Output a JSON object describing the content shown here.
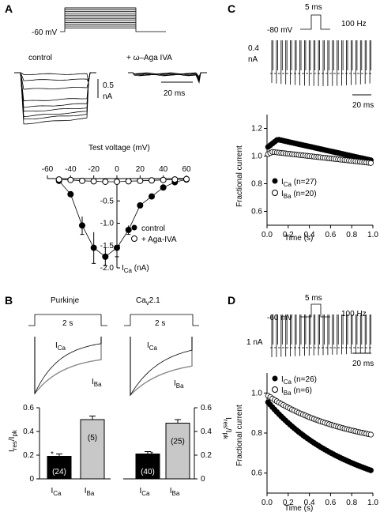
{
  "panels": {
    "A": {
      "label": "A",
      "protocol_holding": "-60 mV",
      "trace_labels": {
        "control": "control",
        "aga": "+ ω–Aga IVA"
      },
      "scale": {
        "current_value": "0.5",
        "current_unit": "nA",
        "time": "20 ms"
      },
      "iv_title": "Test voltage (mV)",
      "iv_ylabel": "I",
      "iv_ylabel_sub": "Ca",
      "iv_yunit": " (nA)",
      "legend": {
        "control": "control",
        "aga": "+ Aga-IVA"
      }
    },
    "B": {
      "label": "B",
      "purkinje": {
        "title": "Purkinje",
        "duration": "2 s",
        "ica": "I",
        "ica_sub": "Ca",
        "iba": "I",
        "iba_sub": "Ba"
      },
      "cav": {
        "title_main": "Ca",
        "title_sub": "v",
        "title_rest": "2.1",
        "duration": "2 s",
        "ica": "I",
        "ica_sub": "Ca",
        "iba": "I",
        "iba_sub": "Ba"
      },
      "ylabel_left": {
        "main": "I",
        "sub1": "res",
        "mid": "/I",
        "sub2": "pk"
      },
      "ylabel_right": {
        "main": "I",
        "sub1": "res",
        "mid": "/I",
        "sub2": "pk"
      },
      "star": "*",
      "xcat": {
        "main": "I",
        "ca_sub": "Ca",
        "ba_sub": "Ba"
      }
    },
    "C": {
      "label": "C",
      "pulse_duration": "5 ms",
      "holding": "-80 mV",
      "frequency": "100 Hz",
      "scale": {
        "current_value": "0.4",
        "current_unit": "nA",
        "time": "20 ms"
      },
      "ylabel": "Fractional current",
      "xlabel": "Time (s)",
      "legend": {
        "ica": "I",
        "ica_sub": "Ca",
        "ica_n": " (n=27)",
        "iba": "I",
        "iba_sub": "Ba",
        "iba_n": " (n=20)"
      }
    },
    "D": {
      "label": "D",
      "pulse_duration": "5 ms",
      "holding": "-60 mV",
      "frequency": "100 Hz",
      "scale": {
        "current_value": "1 nA",
        "time": "20 ms"
      },
      "ylabel": "Fractional current",
      "xlabel": "Time (s)",
      "legend": {
        "ica": "I",
        "ica_sub": "Ca",
        "ica_n": " (n=26)",
        "iba": "I",
        "iba_sub": "Ba",
        "iba_n": " (n=6)"
      }
    }
  },
  "chart_data": [
    {
      "id": "A-iv",
      "type": "line",
      "title": "Test voltage (mV)",
      "xlim": [
        -60,
        60
      ],
      "ylim": [
        -2.0,
        0
      ],
      "xticks": [
        -60,
        -40,
        -20,
        0,
        20,
        40,
        60
      ],
      "yticks": [
        -2.0,
        -1.5,
        -1.0,
        -0.5
      ],
      "series": [
        {
          "name": "control",
          "marker": "filled",
          "x": [
            -50,
            -40,
            -30,
            -20,
            -10,
            0,
            10,
            20,
            30,
            40,
            50,
            60
          ],
          "y": [
            -0.05,
            -0.35,
            -1.05,
            -1.55,
            -1.75,
            -1.55,
            -1.15,
            -0.6,
            -0.4,
            -0.2,
            -0.08,
            -0.02
          ],
          "err": [
            0.02,
            0.05,
            0.2,
            0.35,
            0.2,
            0.2,
            0.1,
            0.05,
            0.05,
            0.03,
            0.02,
            0.01
          ]
        },
        {
          "name": "+ Aga-IVA",
          "marker": "open",
          "x": [
            -50,
            -40,
            -30,
            -20,
            -10,
            0,
            10,
            20,
            30,
            40,
            50,
            60
          ],
          "y": [
            -0.02,
            -0.03,
            -0.05,
            -0.06,
            -0.07,
            -0.07,
            -0.06,
            -0.05,
            -0.04,
            -0.03,
            -0.02,
            -0.01
          ]
        }
      ]
    },
    {
      "id": "B-bar-purkinje",
      "type": "bar",
      "categories": [
        "Ca",
        "Ba"
      ],
      "values": [
        0.19,
        0.5
      ],
      "err": [
        0.02,
        0.03
      ],
      "n": [
        "(24)",
        "(5)"
      ],
      "ylim": [
        0,
        0.6
      ],
      "yticks": [
        0,
        0.2,
        0.4,
        0.6
      ]
    },
    {
      "id": "B-bar-cav21",
      "type": "bar",
      "categories": [
        "Ca",
        "Ba"
      ],
      "values": [
        0.21,
        0.47
      ],
      "err": [
        0.02,
        0.03
      ],
      "n": [
        "(40)",
        "(25)"
      ],
      "ylim": [
        0,
        0.6
      ],
      "yticks": [
        0,
        0.2,
        0.4,
        0.6
      ]
    },
    {
      "id": "C-fractional",
      "type": "scatter",
      "xlabel": "Time (s)",
      "ylabel": "Fractional current",
      "xlim": [
        0,
        1.0
      ],
      "ylim": [
        0.5,
        1.3
      ],
      "xticks": [
        0.0,
        0.2,
        0.4,
        0.6,
        0.8,
        1.0
      ],
      "yticks": [
        0.6,
        0.8,
        1.0,
        1.2
      ],
      "series": [
        {
          "name": "ICa (n=27)",
          "marker": "filled",
          "start": 1.06,
          "peak": 1.12,
          "peak_t": 0.1,
          "end": 0.97
        },
        {
          "name": "IBa (n=20)",
          "marker": "open",
          "start": 1.01,
          "peak": 1.03,
          "peak_t": 0.05,
          "end": 0.95
        }
      ]
    },
    {
      "id": "D-fractional",
      "type": "scatter",
      "xlabel": "Time (s)",
      "ylabel": "Fractional current",
      "xlim": [
        0,
        1.0
      ],
      "ylim": [
        0.5,
        1.1
      ],
      "xticks": [
        0.0,
        0.2,
        0.4,
        0.6,
        0.8,
        1.0
      ],
      "yticks": [
        0.6,
        0.8,
        1.0
      ],
      "series": [
        {
          "name": "ICa (n=26)",
          "marker": "filled",
          "start": 0.96,
          "end": 0.61
        },
        {
          "name": "IBa (n=6)",
          "marker": "open",
          "start": 0.99,
          "end": 0.79
        }
      ]
    }
  ]
}
